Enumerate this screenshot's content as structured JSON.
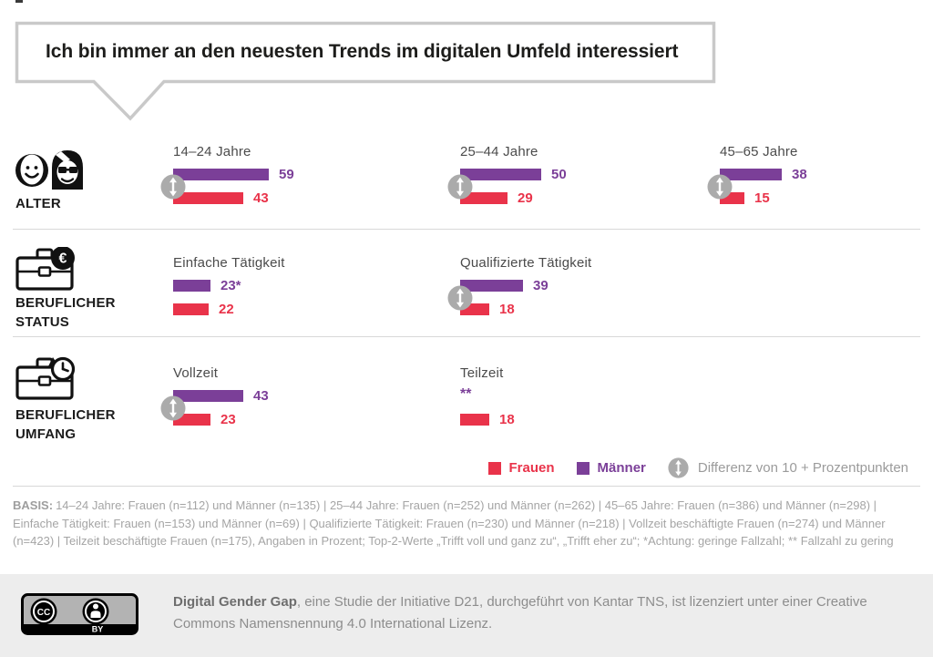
{
  "title": "Ich bin immer an den neuesten Trends im digitalen Umfeld interessiert",
  "colors": {
    "frauen": "#E9334A",
    "maenner": "#7B3F98",
    "diff": "#ABABAB"
  },
  "chart_data": {
    "type": "bar",
    "orientation": "horizontal",
    "title": "Ich bin immer an den neuesten Trends im digitalen Umfeld interessiert",
    "value_unit": "Prozent (Top-2-Werte)",
    "legend": [
      "Frauen",
      "Männer",
      "Differenz von 10 + Prozentpunkten"
    ],
    "rows": [
      {
        "category": "ALTER",
        "icon": "age-faces-icon",
        "groups": [
          {
            "label": "14–24 Jahre",
            "maenner": 59,
            "maenner_label": "59",
            "frauen": 43,
            "frauen_label": "43",
            "diff": true
          },
          {
            "label": "25–44 Jahre",
            "maenner": 50,
            "maenner_label": "50",
            "frauen": 29,
            "frauen_label": "29",
            "diff": true
          },
          {
            "label": "45–65 Jahre",
            "maenner": 38,
            "maenner_label": "38",
            "frauen": 15,
            "frauen_label": "15",
            "diff": true
          }
        ]
      },
      {
        "category": "BERUFLICHER STATUS",
        "icon": "briefcase-euro-icon",
        "groups": [
          {
            "label": "Einfache Tätigkeit",
            "maenner": 23,
            "maenner_label": "23*",
            "frauen": 22,
            "frauen_label": "22",
            "diff": false
          },
          {
            "label": "Qualifizierte Tätigkeit",
            "maenner": 39,
            "maenner_label": "39",
            "frauen": 18,
            "frauen_label": "18",
            "diff": true
          }
        ]
      },
      {
        "category": "BERUFLICHER UMFANG",
        "icon": "briefcase-clock-icon",
        "groups": [
          {
            "label": "Vollzeit",
            "maenner": 43,
            "maenner_label": "43",
            "frauen": 23,
            "frauen_label": "23",
            "diff": true
          },
          {
            "label": "Teilzeit",
            "maenner": null,
            "maenner_label": "**",
            "frauen": 18,
            "frauen_label": "18",
            "diff": false
          }
        ]
      }
    ]
  },
  "legend": {
    "frauen": "Frauen",
    "maenner": "Männer",
    "diff": "Differenz von 10 + Prozentpunkten"
  },
  "basis": {
    "label": "BASIS:",
    "text": "14–24 Jahre: Frauen (n=112) und Männer (n=135) | 25–44 Jahre: Frauen (n=252) und Männer (n=262) | 45–65 Jahre: Frauen (n=386) und Männer (n=298) | Einfache Tätigkeit: Frauen (n=153) und Männer (n=69) | Qualifizierte Tätigkeit: Frauen (n=230) und Männer (n=218) | Vollzeit beschäftigte Frauen (n=274) und Männer (n=423) | Teilzeit beschäftigte Frauen (n=175), Angaben in Prozent; Top-2-Werte „Trifft voll und ganz zu“, „Trifft eher zu“; *Achtung: geringe Fallzahl; ** Fallzahl zu gering"
  },
  "footer": {
    "badge": "CC BY",
    "bold": "Digital Gender Gap",
    "rest": ", eine Studie der Initiative D21, durchgeführt von Kantar TNS, ist lizenziert unter einer Creative Commons Namensnennung 4.0 International Lizenz."
  }
}
